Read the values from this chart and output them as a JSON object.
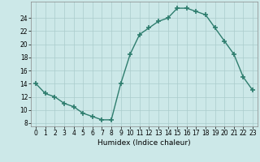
{
  "x": [
    0,
    1,
    2,
    3,
    4,
    5,
    6,
    7,
    8,
    9,
    10,
    11,
    12,
    13,
    14,
    15,
    16,
    17,
    18,
    19,
    20,
    21,
    22,
    23
  ],
  "y": [
    14,
    12.5,
    12,
    11,
    10.5,
    9.5,
    9,
    8.5,
    8.5,
    14,
    18.5,
    21.5,
    22.5,
    23.5,
    24,
    25.5,
    25.5,
    25,
    24.5,
    22.5,
    20.5,
    18.5,
    15,
    13
  ],
  "line_color": "#2e7d6e",
  "marker": "+",
  "marker_size": 4,
  "marker_linewidth": 1.2,
  "bg_color": "#cce8e8",
  "grid_color": "#aacccc",
  "xlabel": "Humidex (Indice chaleur)",
  "xlim": [
    -0.5,
    23.5
  ],
  "ylim": [
    7.5,
    26.5
  ],
  "yticks": [
    8,
    10,
    12,
    14,
    16,
    18,
    20,
    22,
    24
  ],
  "xticks": [
    0,
    1,
    2,
    3,
    4,
    5,
    6,
    7,
    8,
    9,
    10,
    11,
    12,
    13,
    14,
    15,
    16,
    17,
    18,
    19,
    20,
    21,
    22,
    23
  ],
  "label_fontsize": 6.5,
  "tick_fontsize": 5.5
}
